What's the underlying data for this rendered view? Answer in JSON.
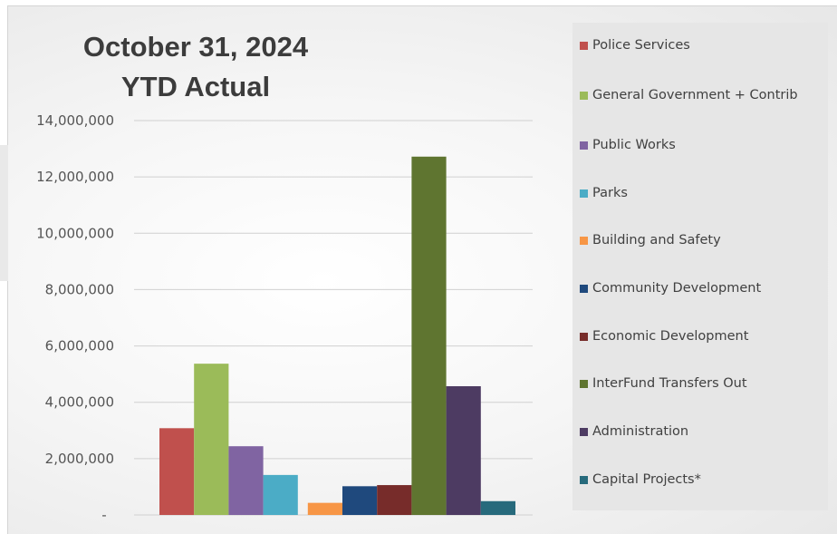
{
  "chart_data": {
    "type": "bar",
    "title_lines": [
      "October 31, 2024",
      "YTD Actual"
    ],
    "xlabel": "",
    "ylabel": "",
    "ylim": [
      0,
      14000000
    ],
    "y_ticks": [
      {
        "value": 0,
        "label": "-"
      },
      {
        "value": 2000000,
        "label": "2,000,000"
      },
      {
        "value": 4000000,
        "label": "4,000,000"
      },
      {
        "value": 6000000,
        "label": "6,000,000"
      },
      {
        "value": 8000000,
        "label": "8,000,000"
      },
      {
        "value": 10000000,
        "label": "10,000,000"
      },
      {
        "value": 12000000,
        "label": "12,000,000"
      },
      {
        "value": 14000000,
        "label": "14,000,000"
      }
    ],
    "grid": true,
    "legend_position": "right",
    "series": [
      {
        "name": "Police Services",
        "value": 3080000,
        "color": "#c0504d"
      },
      {
        "name": "General Government + Contrib",
        "value": 5370000,
        "color": "#9bbb59"
      },
      {
        "name": "Public Works",
        "value": 2440000,
        "color": "#8064a2"
      },
      {
        "name": "Parks",
        "value": 1420000,
        "color": "#4bacc6"
      },
      {
        "name": "Building and Safety",
        "value": 430000,
        "color": "#f79646"
      },
      {
        "name": "Community Development",
        "value": 1020000,
        "color": "#1f497d"
      },
      {
        "name": "Economic Development",
        "value": 1060000,
        "color": "#772c2a"
      },
      {
        "name": "InterFund Transfers Out",
        "value": 12720000,
        "color": "#5f7530"
      },
      {
        "name": "Administration",
        "value": 4570000,
        "color": "#4d3b62"
      },
      {
        "name": "Capital Projects*",
        "value": 490000,
        "color": "#276a7c"
      }
    ]
  }
}
